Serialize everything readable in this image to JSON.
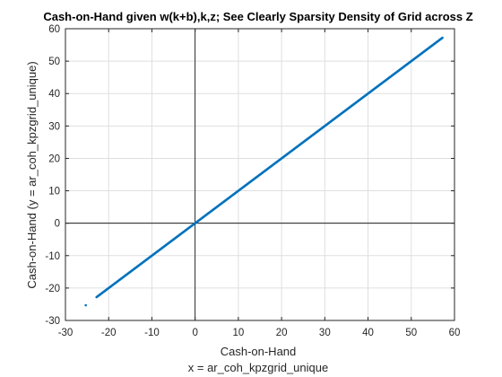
{
  "chart_data": {
    "type": "scatter",
    "title": "Cash-on-Hand given w(k+b),k,z; See Clearly Sparsity Density of Grid across Z",
    "xlabel_line1": "Cash-on-Hand",
    "xlabel_line2": "x = ar_coh_kpzgrid_unique",
    "ylabel": "Cash-on-Hand (y = ar_coh_kpzgrid_unique)",
    "xlim": [
      -30,
      60
    ],
    "ylim": [
      -30,
      60
    ],
    "xticks": [
      "-30",
      "-20",
      "-10",
      "0",
      "10",
      "20",
      "30",
      "40",
      "50",
      "60"
    ],
    "yticks": [
      "-30",
      "-20",
      "-10",
      "0",
      "10",
      "20",
      "30",
      "40",
      "50",
      "60"
    ],
    "grid": true,
    "reference_lines": {
      "x": 0,
      "y": 0
    },
    "series_color": "#0072BD",
    "points_range": {
      "dense_from": -22.8,
      "dense_to": 57.2
    },
    "outliers": [
      {
        "x": -25.3,
        "y": -25.3
      }
    ]
  }
}
